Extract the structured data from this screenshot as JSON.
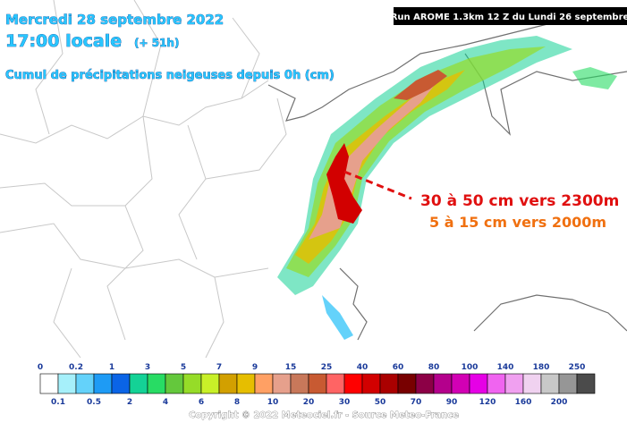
{
  "header": {
    "date": "Mercredi 28 septembre 2022",
    "time": "17:00 locale",
    "offset": "(+ 51h)",
    "subtitle": "Cumul de précipitations neigeuses depuis 0h (cm)",
    "run": "Run AROME 1.3km 12 Z du Lundi 26 septembre"
  },
  "annotations": [
    {
      "text": "30 à 50 cm vers 2300m",
      "color": "#e01010"
    },
    {
      "text": "5 à 15 cm vers 2000m",
      "color": "#f07010"
    }
  ],
  "legend": {
    "top_labels": [
      "0",
      "0.2",
      "1",
      "3",
      "5",
      "7",
      "9",
      "15",
      "25",
      "40",
      "60",
      "80",
      "100",
      "140",
      "180",
      "250"
    ],
    "bottom_labels": [
      "0.1",
      "0.5",
      "2",
      "4",
      "6",
      "8",
      "10",
      "20",
      "30",
      "50",
      "70",
      "90",
      "120",
      "160",
      "200"
    ],
    "colors": [
      "#ffffff",
      "#a6f0fa",
      "#64d2fa",
      "#1e9bf5",
      "#0a64e6",
      "#14d296",
      "#28dc64",
      "#64c83c",
      "#96dc28",
      "#c8f028",
      "#d2a000",
      "#e6be00",
      "#ffa064",
      "#e6a08c",
      "#c8785a",
      "#c85a32",
      "#ff6464",
      "#ff0000",
      "#d20000",
      "#aa0000",
      "#780000",
      "#8c0046",
      "#b4008c",
      "#d200b4",
      "#e600e6",
      "#f064f0",
      "#f0a0f0",
      "#f0d2f0",
      "#c8c8c8",
      "#969696",
      "#4b4b4b"
    ]
  },
  "footer": "Copyright © 2022 Meteociel.fr - Source Meteo-France"
}
